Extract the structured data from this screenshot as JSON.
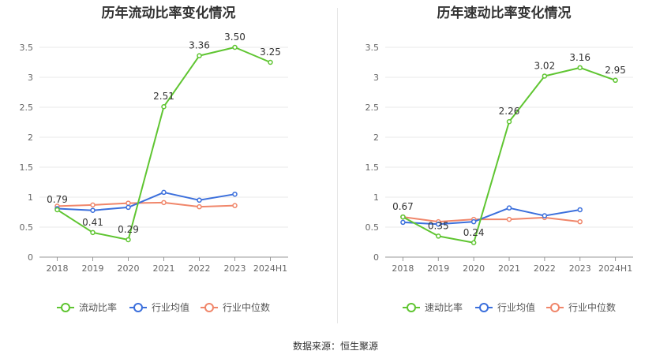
{
  "chart_data": [
    {
      "type": "line",
      "title": "历年流动比率变化情况",
      "categories": [
        "2018",
        "2019",
        "2020",
        "2021",
        "2022",
        "2023",
        "2024H1"
      ],
      "ylim": [
        0,
        3.5
      ],
      "yticks": [
        "0",
        "0.5",
        "1",
        "1.5",
        "2",
        "2.5",
        "3",
        "3.5"
      ],
      "series": [
        {
          "name": "流动比率",
          "color": "#5fc531",
          "values": [
            0.79,
            0.41,
            0.29,
            2.51,
            3.36,
            3.5,
            3.25
          ],
          "labels": [
            "0.79",
            "0.41",
            "0.29",
            "2.51",
            "3.36",
            "3.50",
            "3.25"
          ]
        },
        {
          "name": "行业均值",
          "color": "#3b6fdc",
          "values": [
            0.81,
            0.78,
            0.83,
            1.08,
            0.95,
            1.05,
            null
          ]
        },
        {
          "name": "行业中位数",
          "color": "#f0866a",
          "values": [
            0.85,
            0.87,
            0.9,
            0.91,
            0.84,
            0.86,
            null
          ]
        }
      ]
    },
    {
      "type": "line",
      "title": "历年速动比率变化情况",
      "categories": [
        "2018",
        "2019",
        "2020",
        "2021",
        "2022",
        "2023",
        "2024H1"
      ],
      "ylim": [
        0,
        3.5
      ],
      "yticks": [
        "0",
        "0.5",
        "1",
        "1.5",
        "2",
        "2.5",
        "3",
        "3.5"
      ],
      "series": [
        {
          "name": "速动比率",
          "color": "#5fc531",
          "values": [
            0.67,
            0.35,
            0.24,
            2.26,
            3.02,
            3.16,
            2.95
          ],
          "labels": [
            "0.67",
            "0.35",
            "0.24",
            "2.26",
            "3.02",
            "3.16",
            "2.95"
          ]
        },
        {
          "name": "行业均值",
          "color": "#3b6fdc",
          "values": [
            0.58,
            0.55,
            0.59,
            0.82,
            0.69,
            0.79,
            null
          ]
        },
        {
          "name": "行业中位数",
          "color": "#f0866a",
          "values": [
            0.67,
            0.59,
            0.63,
            0.63,
            0.66,
            0.59,
            null
          ]
        }
      ]
    }
  ],
  "source": "数据来源：恒生聚源"
}
